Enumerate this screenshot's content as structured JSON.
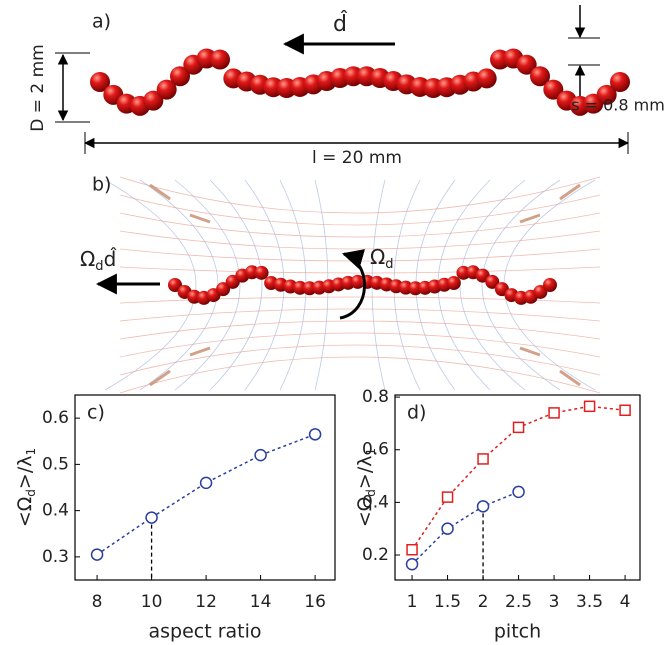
{
  "diagram": {
    "panel_a": {
      "label": "a)",
      "direction": "d̂",
      "diameter": "D = 2 mm",
      "sphere": "s = 0.8 mm",
      "length": "l = 20 mm"
    },
    "panel_b": {
      "label": "b)",
      "rotation": [
        "Ω",
        "d"
      ],
      "translation": [
        "Ω",
        "d",
        "d̂"
      ]
    }
  },
  "chart_data": [
    {
      "type": "line",
      "label": "c)",
      "xlabel": "aspect ratio",
      "ylabel": [
        "<Ω",
        "d",
        ">/λ",
        "1"
      ],
      "x": [
        8,
        10,
        12,
        14,
        16
      ],
      "series": [
        {
          "color": "#2b3f9e",
          "marker": "circle",
          "values": [
            0.305,
            0.385,
            0.46,
            0.52,
            0.565
          ],
          "drop_line_index": 1
        }
      ],
      "xlim": [
        7.19,
        16.73
      ],
      "ylim": [
        0.25,
        0.65
      ],
      "xticks": [
        8,
        10,
        12,
        14,
        16
      ],
      "yticks": [
        0.3,
        0.4,
        0.5,
        0.6
      ]
    },
    {
      "type": "line",
      "label": "d)",
      "xlabel": "pitch",
      "ylabel": [
        "<Ω",
        "d",
        ">/λ",
        "1"
      ],
      "x": [
        1,
        1.5,
        2,
        2.5,
        3,
        3.5,
        4
      ],
      "series": [
        {
          "color": "#e02020",
          "marker": "square",
          "values": [
            0.22,
            0.42,
            0.565,
            0.685,
            0.74,
            0.765,
            0.75
          ]
        },
        {
          "color": "#2b3f9e",
          "marker": "circle",
          "values": [
            0.165,
            0.3,
            0.385,
            0.44,
            null,
            null,
            null
          ],
          "drop_line_index": 2
        }
      ],
      "xlim": [
        0.76,
        4.21
      ],
      "ylim": [
        0.105,
        0.808
      ],
      "xticks": [
        1,
        1.5,
        2,
        2.5,
        3,
        3.5,
        4
      ],
      "yticks": [
        0.2,
        0.4,
        0.6,
        0.8
      ]
    }
  ]
}
